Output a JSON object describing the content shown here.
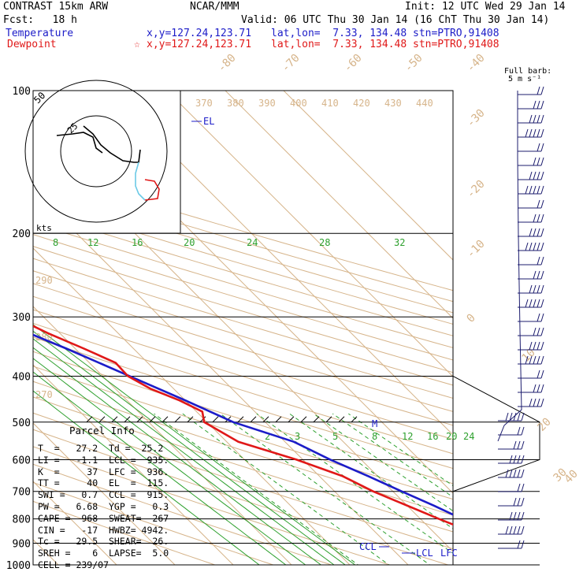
{
  "header": {
    "title": "CONTRAST 15km ARW",
    "source": "NCAR/MMM",
    "init": "Init: 12 UTC Wed 29 Jan 14",
    "fcst": "Fcst:   18 h",
    "valid": "Valid: 06 UTC Thu 30 Jan 14 (16 ChT Thu 30 Jan 14)",
    "temp_label": "Temperature",
    "temp_xy": "x,y=127.24,123.71",
    "temp_latlon": "lat,lon=  7.33, 134.48",
    "temp_stn": "stn=PTRO,91408",
    "dew_label": "Dewpoint",
    "dew_xy": "x,y=127.24,123.71",
    "dew_latlon": "lat,lon=  7.33, 134.48",
    "dew_stn": "stn=PTRO,91408",
    "barb_label_1": "Full barb:",
    "barb_label_2": "5 m s⁻¹"
  },
  "parcel": {
    "title": "Parcel Info",
    "rows": [
      "T  =   27.2  Td =  25.2",
      "LI =   -1.1  LCL =  935.",
      "K  =     37  LFC =  936.",
      "TT =     40  EL  =  115.",
      "SWI =   0.7  CCL =  915.",
      "PW =   6.68  YGP =   0.3",
      "CAPE =  968  SWEAT=  267",
      "CIN =   -17  HWBZ= 4942.",
      "Tc =   29.5  SHEAR=  26.",
      "SREH =    6  LAPSE=  5.0",
      "CELL = 239/07"
    ]
  },
  "chart_data": {
    "type": "line",
    "title": "Skew-T log-P sounding",
    "pressure_levels": [
      100,
      200,
      300,
      400,
      500,
      600,
      700,
      800,
      900,
      1000
    ],
    "isotherm_labels": [
      "-80",
      "-70",
      "-60",
      "-50",
      "-40",
      "-30",
      "-20",
      "-10",
      "0",
      "10",
      "20",
      "30",
      "40"
    ],
    "theta_labels": [
      "370",
      "380",
      "390",
      "400",
      "410",
      "420",
      "430",
      "440",
      "290",
      "280",
      "270"
    ],
    "mixing_ratio_upper": [
      "8",
      "12",
      "16",
      "20",
      "24",
      "28",
      "32"
    ],
    "mixing_ratio_lower": [
      "2",
      "3",
      "5",
      "8",
      "12",
      "16",
      "20",
      "24"
    ],
    "hodograph_labels": [
      "50",
      "kts",
      "25"
    ],
    "level_labels": {
      "el": "EL",
      "ccl": "CCL",
      "lcl": "LCL",
      "lfc": "LFC",
      "m": "M"
    },
    "series": [
      {
        "name": "Temperature",
        "color": "#1c1cc8",
        "points": [
          [
            1000,
            27.2
          ],
          [
            975,
            25
          ],
          [
            950,
            24
          ],
          [
            925,
            22.6
          ],
          [
            900,
            21.8
          ],
          [
            850,
            19.6
          ],
          [
            800,
            17.2
          ],
          [
            750,
            14.6
          ],
          [
            700,
            11.5
          ],
          [
            650,
            8.4
          ],
          [
            600,
            4.7
          ],
          [
            550,
            1.5
          ],
          [
            500,
            -5.5
          ],
          [
            450,
            -10
          ],
          [
            400,
            -15.4
          ],
          [
            350,
            -21.5
          ],
          [
            300,
            -29.3
          ],
          [
            250,
            -38.5
          ],
          [
            200,
            -49.5
          ],
          [
            175,
            -57
          ],
          [
            150,
            -66
          ],
          [
            125,
            -75.5
          ],
          [
            115,
            -79
          ],
          [
            100,
            -82
          ]
        ]
      },
      {
        "name": "Dewpoint",
        "color": "#e01818",
        "points": [
          [
            1000,
            25.2
          ],
          [
            975,
            24
          ],
          [
            950,
            23.6
          ],
          [
            925,
            21.5
          ],
          [
            900,
            20
          ],
          [
            850,
            16.4
          ],
          [
            800,
            13.2
          ],
          [
            700,
            6.6
          ],
          [
            650,
            4
          ],
          [
            600,
            -1.1
          ],
          [
            550,
            -8
          ],
          [
            500,
            -10.5
          ],
          [
            475,
            -9
          ],
          [
            450,
            -11
          ],
          [
            425,
            -14
          ],
          [
            400,
            -15.7
          ],
          [
            375,
            -15.5
          ],
          [
            350,
            -18.5
          ],
          [
            325,
            -22
          ],
          [
            300,
            -25
          ],
          [
            275,
            -42
          ],
          [
            260,
            -63
          ],
          [
            240,
            -69
          ],
          [
            220,
            -55
          ],
          [
            210,
            -39
          ],
          [
            200,
            -36
          ],
          [
            190,
            -38
          ],
          [
            180,
            -44
          ],
          [
            150,
            -60
          ],
          [
            130,
            -72
          ],
          [
            120,
            -77
          ],
          [
            105,
            -75
          ],
          [
            100,
            -78
          ]
        ]
      }
    ]
  }
}
